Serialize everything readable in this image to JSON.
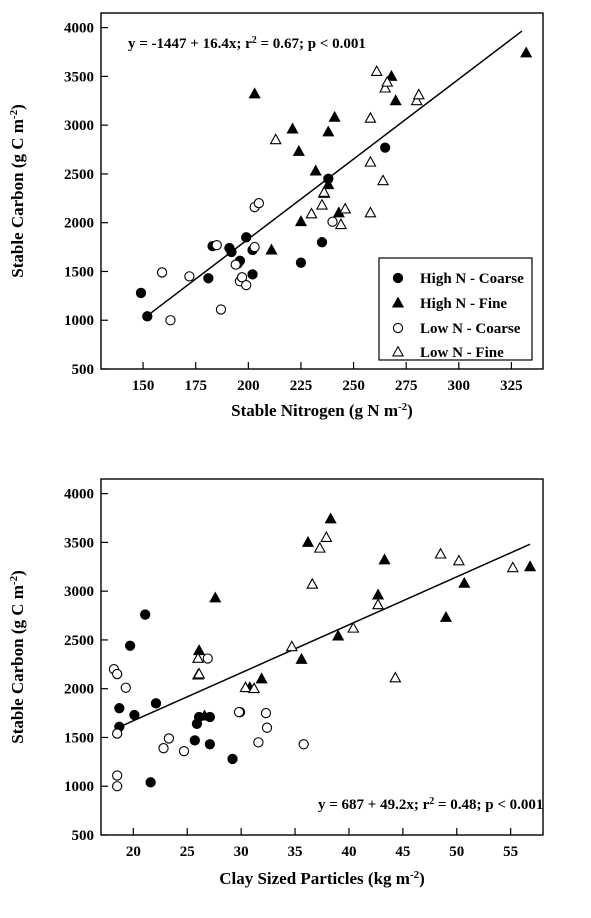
{
  "chart_data": [
    {
      "type": "scatter",
      "xlabel": {
        "main": "Stable Nitrogen (g N m",
        "sup": "-2",
        "close": ")"
      },
      "ylabel": {
        "main": "Stable Carbon (g C m",
        "sup": "-2",
        "close": ")"
      },
      "xlim": [
        130,
        340
      ],
      "ylim": [
        500,
        4150
      ],
      "xticks": [
        150,
        175,
        200,
        225,
        250,
        275,
        300,
        325
      ],
      "yticks": [
        500,
        1000,
        1500,
        2000,
        2500,
        3000,
        3500,
        4000
      ],
      "grid": false,
      "equation": {
        "lhs": "y = -1447 + 16.4x; r",
        "sup": "2",
        "rhs": " = 0.67; p < 0.001"
      },
      "fit_line": {
        "intercept": -1447,
        "slope": 16.4,
        "x_range": [
          150,
          330
        ]
      },
      "legend_position": "bottom-right",
      "series": [
        {
          "name": "High N - Coarse",
          "marker": "circle-filled",
          "points": [
            [
              149,
              1280
            ],
            [
              152,
              1040
            ],
            [
              181,
              1430
            ],
            [
              183,
              1760
            ],
            [
              191,
              1740
            ],
            [
              192,
              1700
            ],
            [
              195,
              1580
            ],
            [
              196,
              1610
            ],
            [
              199,
              1850
            ],
            [
              202,
              1470
            ],
            [
              202,
              1720
            ],
            [
              225,
              1590
            ],
            [
              235,
              1800
            ],
            [
              238,
              2450
            ],
            [
              265,
              2770
            ]
          ]
        },
        {
          "name": "High N - Fine",
          "marker": "triangle-filled",
          "points": [
            [
              203,
              3320
            ],
            [
              211,
              1720
            ],
            [
              221,
              2960
            ],
            [
              224,
              2730
            ],
            [
              225,
              2010
            ],
            [
              232,
              2530
            ],
            [
              236,
              2300
            ],
            [
              238,
              2390
            ],
            [
              238,
              2930
            ],
            [
              241,
              3080
            ],
            [
              243,
              2100
            ],
            [
              268,
              3500
            ],
            [
              270,
              3250
            ],
            [
              332,
              3740
            ]
          ]
        },
        {
          "name": "Low N - Coarse",
          "marker": "circle-open",
          "points": [
            [
              159,
              1490
            ],
            [
              163,
              1000
            ],
            [
              172,
              1450
            ],
            [
              185,
              1770
            ],
            [
              187,
              1110
            ],
            [
              194,
              1570
            ],
            [
              196,
              1400
            ],
            [
              197,
              1440
            ],
            [
              199,
              1360
            ],
            [
              203,
              1750
            ],
            [
              203,
              2160
            ],
            [
              205,
              2200
            ],
            [
              240,
              2010
            ]
          ]
        },
        {
          "name": "Low N - Fine",
          "marker": "triangle-open",
          "points": [
            [
              213,
              2850
            ],
            [
              230,
              2090
            ],
            [
              235,
              2180
            ],
            [
              236,
              2310
            ],
            [
              244,
              1980
            ],
            [
              246,
              2140
            ],
            [
              258,
              2100
            ],
            [
              258,
              2620
            ],
            [
              258,
              3070
            ],
            [
              261,
              3550
            ],
            [
              264,
              2430
            ],
            [
              265,
              3380
            ],
            [
              266,
              3440
            ],
            [
              280,
              3250
            ],
            [
              281,
              3310
            ]
          ]
        }
      ]
    },
    {
      "type": "scatter",
      "xlabel": {
        "main": "Clay Sized Particles (kg m",
        "sup": "-2",
        "close": ")"
      },
      "ylabel": {
        "main": "Stable Carbon (g C m",
        "sup": "-2",
        "close": ")"
      },
      "xlim": [
        17,
        58
      ],
      "ylim": [
        500,
        4150
      ],
      "xticks": [
        20,
        25,
        30,
        35,
        40,
        45,
        50,
        55
      ],
      "yticks": [
        500,
        1000,
        1500,
        2000,
        2500,
        3000,
        3500,
        4000
      ],
      "grid": false,
      "equation": {
        "lhs": "y = 687 + 49.2x; r",
        "sup": "2",
        "rhs": " = 0.48; p < 0.001"
      },
      "fit_line": {
        "intercept": 687,
        "slope": 49.2,
        "x_range": [
          18.5,
          56.8
        ]
      },
      "series": [
        {
          "name": "High N - Coarse",
          "marker": "circle-filled",
          "points": [
            [
              18.7,
              1800
            ],
            [
              18.7,
              1610
            ],
            [
              19.7,
              2440
            ],
            [
              20.1,
              1730
            ],
            [
              21.1,
              2760
            ],
            [
              21.6,
              1040
            ],
            [
              22.1,
              1850
            ],
            [
              25.7,
              1470
            ],
            [
              25.9,
              1640
            ],
            [
              26.1,
              1710
            ],
            [
              27.1,
              1710
            ],
            [
              27.1,
              1430
            ],
            [
              29.2,
              1280
            ],
            [
              29.9,
              1760
            ]
          ]
        },
        {
          "name": "High N - Fine",
          "marker": "triangle-filled",
          "points": [
            [
              26.1,
              2390
            ],
            [
              26.6,
              1720
            ],
            [
              27.6,
              2930
            ],
            [
              30.8,
              2010
            ],
            [
              31.9,
              2100
            ],
            [
              35.6,
              2300
            ],
            [
              36.2,
              3500
            ],
            [
              38.3,
              3740
            ],
            [
              39.0,
              2540
            ],
            [
              42.7,
              2960
            ],
            [
              43.3,
              3320
            ],
            [
              49.0,
              2730
            ],
            [
              50.7,
              3080
            ],
            [
              56.8,
              3250
            ]
          ]
        },
        {
          "name": "Low N - Coarse",
          "marker": "circle-open",
          "points": [
            [
              18.2,
              2200
            ],
            [
              18.5,
              2150
            ],
            [
              18.5,
              1540
            ],
            [
              18.5,
              1110
            ],
            [
              18.5,
              1000
            ],
            [
              19.3,
              2010
            ],
            [
              22.8,
              1390
            ],
            [
              23.3,
              1490
            ],
            [
              24.7,
              1360
            ],
            [
              26.9,
              2310
            ],
            [
              29.8,
              1760
            ],
            [
              31.6,
              1450
            ],
            [
              32.3,
              1750
            ],
            [
              32.4,
              1600
            ],
            [
              35.8,
              1430
            ]
          ]
        },
        {
          "name": "Low N - Fine",
          "marker": "triangle-open",
          "points": [
            [
              26.0,
              2310
            ],
            [
              26.0,
              2140
            ],
            [
              26.1,
              2150
            ],
            [
              30.4,
              2010
            ],
            [
              31.2,
              2000
            ],
            [
              34.7,
              2430
            ],
            [
              36.6,
              3070
            ],
            [
              37.3,
              3440
            ],
            [
              37.9,
              3550
            ],
            [
              40.4,
              2620
            ],
            [
              42.7,
              2860
            ],
            [
              44.3,
              2110
            ],
            [
              48.5,
              3380
            ],
            [
              50.2,
              3310
            ],
            [
              55.2,
              3240
            ]
          ]
        }
      ]
    }
  ]
}
